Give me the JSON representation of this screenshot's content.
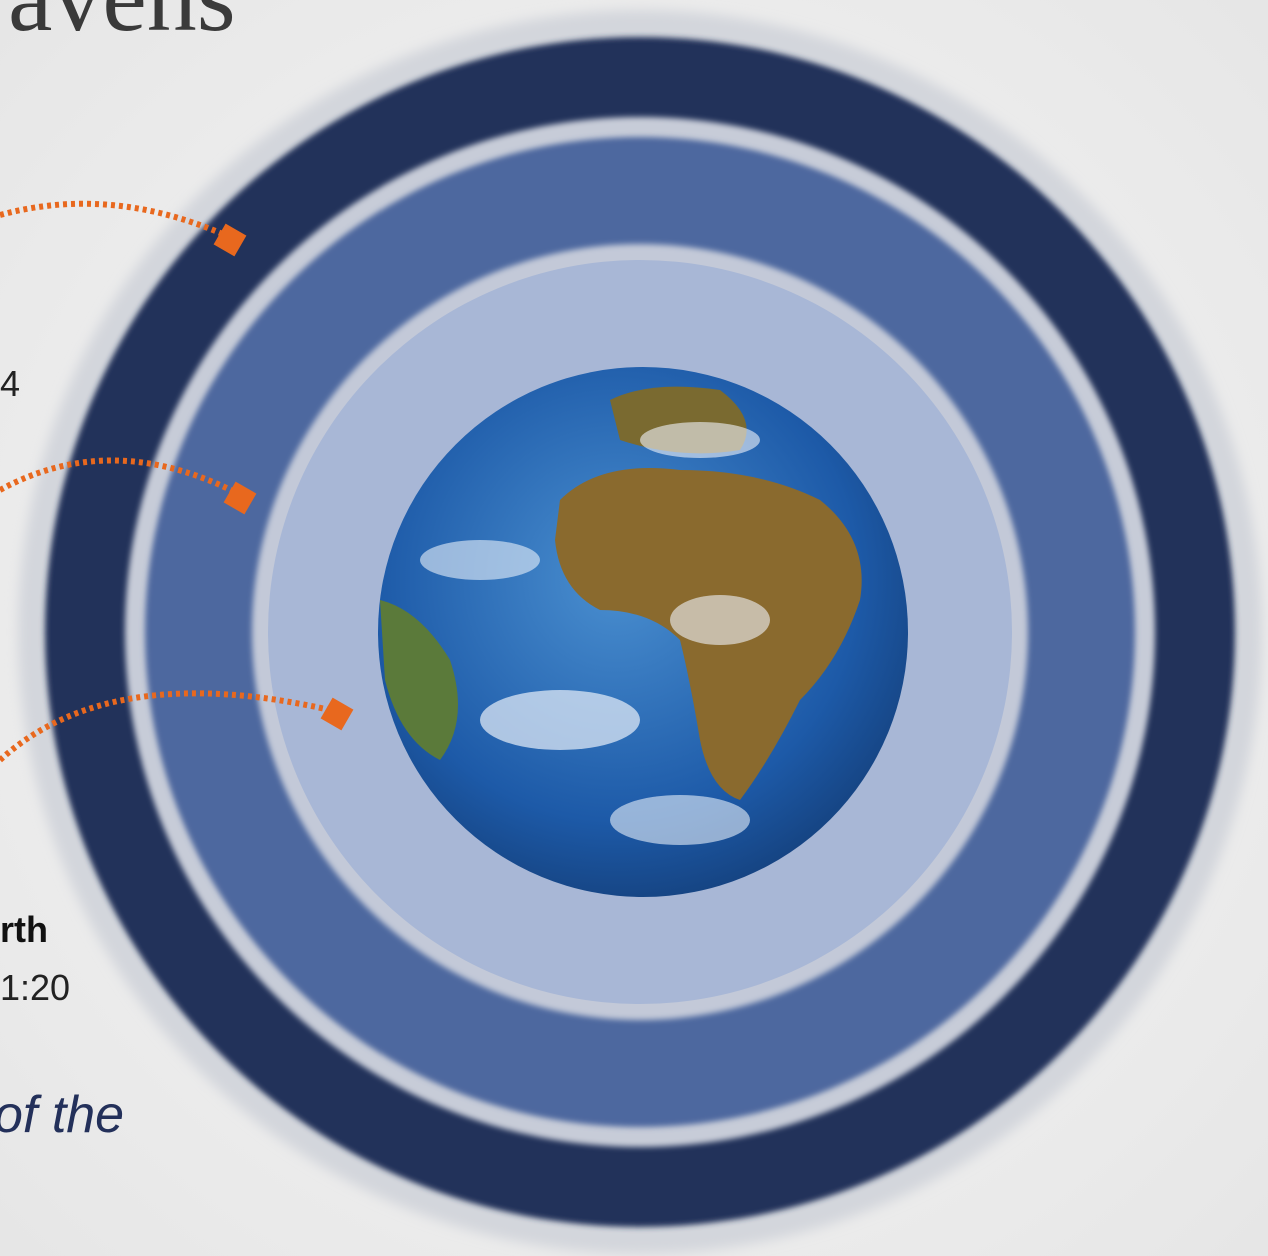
{
  "header": {
    "title": "avens"
  },
  "labels": [
    {
      "text": "4"
    },
    {
      "text": "rth"
    },
    {
      "text": "1:20"
    },
    {
      "text": "of the"
    }
  ]
}
